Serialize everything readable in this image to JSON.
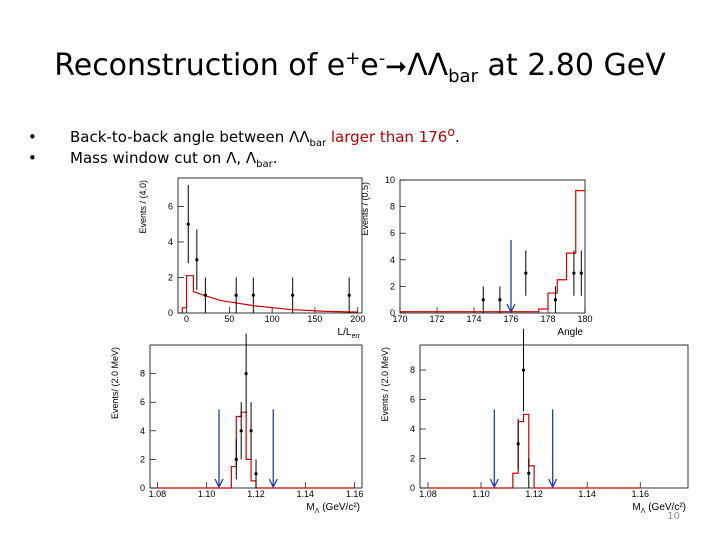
{
  "slide": {
    "title": [
      "Reconstruction of e",
      "+",
      "e",
      "-",
      "ΛΛ",
      "bar",
      " at 2.80 GeV"
    ],
    "bullets": [
      [
        "Back-to-back angle between ΛΛ",
        "bar",
        " larger than 176",
        "o",
        "."
      ],
      [
        "Mass window cut on Λ, Λ",
        "bar",
        "."
      ]
    ],
    "page_number": "10"
  },
  "chart_data": [
    {
      "type": "errorbar",
      "ylabel": "Events / (4.0)",
      "xlabel": "L/L",
      "xlabel_sub": "err",
      "xlim": [
        -10,
        205
      ],
      "ylim": [
        0,
        7.6
      ],
      "xticks": [
        0,
        50,
        100,
        150,
        200
      ],
      "yticks": [
        0,
        2,
        4,
        6
      ],
      "x": [
        2,
        12,
        22,
        58,
        78,
        124,
        190
      ],
      "values": [
        5,
        3,
        1,
        1,
        1,
        1,
        1
      ],
      "errors": [
        2.2,
        1.7,
        1,
        1,
        1,
        1,
        1
      ],
      "fit": {
        "color": "#d00000",
        "x": [
          -5,
          -5,
          0,
          0,
          8,
          8,
          20,
          40,
          80,
          120,
          160,
          200
        ],
        "values": [
          0,
          0.3,
          0.3,
          2.1,
          2.1,
          1.2,
          1.0,
          0.7,
          0.4,
          0.2,
          0.1,
          0.05
        ]
      }
    },
    {
      "type": "errorbar",
      "ylabel": "Events / (0.5)",
      "xlabel": "Angle",
      "xlim": [
        170,
        180
      ],
      "ylim": [
        0,
        10
      ],
      "xticks": [
        170,
        172,
        174,
        176,
        178,
        180
      ],
      "yticks": [
        0,
        2,
        4,
        6,
        8,
        10
      ],
      "x": [
        174.5,
        175.4,
        176.8,
        178.4,
        179.4,
        179.8
      ],
      "values": [
        1,
        1,
        3,
        1,
        3,
        3
      ],
      "errors": [
        1,
        1,
        1.7,
        1,
        1.7,
        1.7
      ],
      "fit": {
        "color": "#d00000",
        "x": [
          170,
          177.5,
          177.5,
          178,
          178,
          178.5,
          178.5,
          179,
          179,
          179.5,
          179.5,
          180
        ],
        "values": [
          0.1,
          0.1,
          0.3,
          0.3,
          1.5,
          1.5,
          2.5,
          2.5,
          4.5,
          4.5,
          9.2,
          9.2
        ]
      },
      "cuts": [
        176
      ],
      "cut_color": "#1f3fb0"
    },
    {
      "type": "errorbar",
      "ylabel": "Events/ (2.0 MeV)",
      "xlabel": "M",
      "xlabel_sub": "Λ",
      "xlabel_rest": " (GeV/c²)",
      "xlim": [
        1.077,
        1.163
      ],
      "ylim": [
        0,
        10
      ],
      "xticks": [
        1.08,
        {
          "value": 1.1,
          "label": "1.10"
        },
        1.12,
        1.14,
        1.16
      ],
      "yticks": [
        0,
        2,
        4,
        6,
        8
      ],
      "x": [
        1.112,
        1.114,
        1.116,
        1.118,
        1.12
      ],
      "values": [
        2,
        4,
        8,
        4,
        1
      ],
      "errors": [
        1.4,
        2,
        2.8,
        2,
        1
      ],
      "fit": {
        "color": "#d00000",
        "x": [
          1.08,
          1.11,
          1.11,
          1.112,
          1.112,
          1.114,
          1.114,
          1.116,
          1.116,
          1.118,
          1.118,
          1.12,
          1.12,
          1.16
        ],
        "values": [
          0,
          0,
          1.5,
          1.5,
          5,
          5,
          5.3,
          5.3,
          2,
          2,
          0.5,
          0.5,
          0,
          0
        ]
      },
      "cuts": [
        1.105,
        1.127
      ],
      "cut_color": "#1f3fb0"
    },
    {
      "type": "errorbar",
      "ylabel": "Events / (2.0 MeV)",
      "xlabel": "M",
      "xlabel_sub": "Λ",
      "xlabel_rest": " (GeV/c²)",
      "xlim": [
        1.077,
        1.178
      ],
      "ylim": [
        0,
        9.7
      ],
      "xticks": [
        1.08,
        {
          "value": 1.1,
          "label": "1.10"
        },
        1.12,
        1.14,
        1.16
      ],
      "yticks": [
        0,
        2,
        4,
        6,
        8
      ],
      "x": [
        1.114,
        1.116,
        1.118
      ],
      "values": [
        3,
        8,
        1
      ],
      "errors": [
        1.7,
        2.8,
        1
      ],
      "fit": {
        "color": "#d00000",
        "x": [
          1.08,
          1.112,
          1.112,
          1.114,
          1.114,
          1.116,
          1.116,
          1.118,
          1.118,
          1.12,
          1.12,
          1.16
        ],
        "values": [
          0,
          0,
          1,
          1,
          4.5,
          4.5,
          5,
          5,
          1.5,
          1.5,
          0,
          0
        ]
      },
      "cuts": [
        1.105,
        1.127
      ],
      "cut_color": "#1f3fb0"
    }
  ]
}
